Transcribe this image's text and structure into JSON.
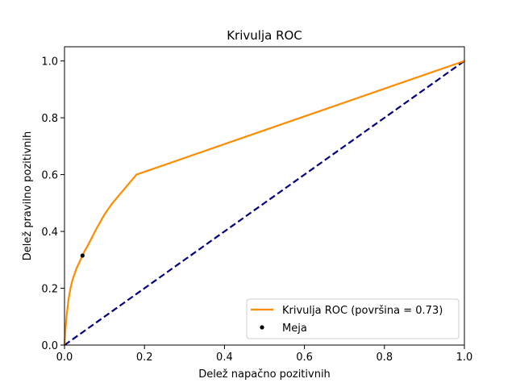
{
  "chart_data": {
    "type": "line",
    "title": "Krivulja ROC",
    "xlabel": "Delež napačno pozitivnih",
    "ylabel": "Delež pravilno pozitivnih",
    "xlim": [
      0.0,
      1.0
    ],
    "ylim": [
      0.0,
      1.05
    ],
    "x_ticks": [
      "0.0",
      "0.2",
      "0.4",
      "0.6",
      "0.8",
      "1.0"
    ],
    "y_ticks": [
      "0.0",
      "0.2",
      "0.4",
      "0.6",
      "0.8",
      "1.0"
    ],
    "grid": false,
    "legend_position": "bottom-right",
    "series": [
      {
        "name": "Krivulja ROC (površina = 0.73)",
        "kind": "line",
        "color": "#ff8c00",
        "x": [
          0.0,
          0.002,
          0.005,
          0.01,
          0.015,
          0.02,
          0.03,
          0.04,
          0.05,
          0.06,
          0.08,
          0.1,
          0.12,
          0.15,
          0.18,
          1.0
        ],
        "y": [
          0.0,
          0.05,
          0.1,
          0.16,
          0.2,
          0.23,
          0.27,
          0.3,
          0.33,
          0.355,
          0.41,
          0.46,
          0.5,
          0.55,
          0.6,
          1.0
        ]
      },
      {
        "name": "Meja",
        "kind": "point",
        "color": "#000000",
        "x": [
          0.045
        ],
        "y": [
          0.315
        ]
      },
      {
        "name": "",
        "kind": "dashed-line",
        "color": "#000080",
        "x": [
          0.0,
          1.0
        ],
        "y": [
          0.0,
          1.0
        ]
      }
    ]
  }
}
